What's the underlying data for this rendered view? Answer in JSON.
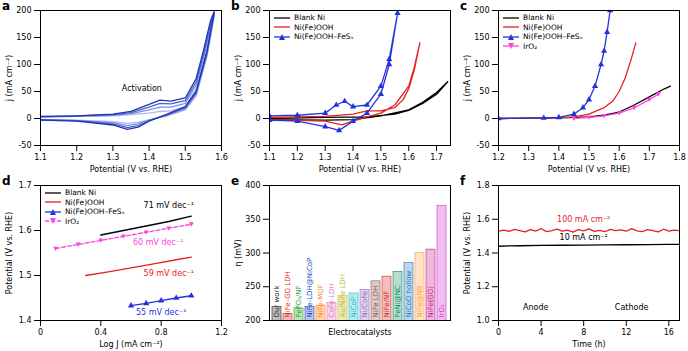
{
  "chart_data": [
    {
      "title": "a",
      "type": "line",
      "x_label": "Potential (V vs. RHE)",
      "y_label": "j (mA cm⁻²)",
      "xlim": [
        1.1,
        1.6
      ],
      "xticks": [
        1.1,
        1.2,
        1.3,
        1.4,
        1.5,
        1.6
      ],
      "ylim": [
        -50,
        200
      ],
      "yticks": [
        -50,
        0,
        50,
        100,
        150,
        200
      ],
      "x": [
        1.1,
        1.2,
        1.3,
        1.35,
        1.4,
        1.43,
        1.46,
        1.5,
        1.53,
        1.55,
        1.57,
        1.58,
        1.56,
        1.53,
        1.5,
        1.45,
        1.4,
        1.37,
        1.34,
        1.3,
        1.2,
        1.1
      ],
      "series": [
        {
          "color": "#aab8ee",
          "line_style": "solid",
          "values": [
            3,
            4,
            5,
            7,
            10,
            13,
            14,
            22,
            55,
            100,
            160,
            190,
            115,
            42,
            16,
            5,
            -2,
            -7,
            -9,
            -6,
            -3,
            -2
          ]
        },
        {
          "color": "#7b8fe0",
          "line_style": "solid",
          "values": [
            3,
            4,
            6,
            9,
            16,
            21,
            21,
            28,
            62,
            110,
            168,
            193,
            118,
            45,
            18,
            6,
            -3,
            -10,
            -13,
            -8,
            -4,
            -2
          ]
        },
        {
          "color": "#4a62d0",
          "line_style": "solid",
          "values": [
            3,
            5,
            7,
            11,
            21,
            28,
            27,
            33,
            68,
            118,
            175,
            196,
            122,
            48,
            20,
            7,
            -4,
            -13,
            -17,
            -10,
            -4,
            -2
          ]
        },
        {
          "color": "#1f35b5",
          "line_style": "solid",
          "values": [
            4,
            5,
            8,
            13,
            26,
            34,
            32,
            38,
            74,
            125,
            182,
            198,
            125,
            50,
            22,
            8,
            -5,
            -16,
            -20,
            -12,
            -5,
            -3
          ]
        }
      ],
      "annotations": [
        {
          "text": "Activation",
          "x": 1.38,
          "y": 55,
          "color": "#000000"
        }
      ]
    },
    {
      "title": "b",
      "type": "line",
      "x_label": "Potential (V vs. RHE)",
      "y_label": "j (mA cm⁻²)",
      "xlim": [
        1.1,
        1.75
      ],
      "xticks": [
        1.1,
        1.2,
        1.3,
        1.4,
        1.5,
        1.6,
        1.7
      ],
      "ylim": [
        -50,
        200
      ],
      "yticks": [
        -50,
        0,
        50,
        100,
        150,
        200
      ],
      "legend": "top-left",
      "series": [
        {
          "name": "Blank Ni",
          "color": "#000000",
          "line_style": "solid",
          "x": [
            1.1,
            1.3,
            1.45,
            1.55,
            1.6,
            1.65,
            1.7,
            1.74,
            1.7,
            1.65,
            1.6,
            1.5,
            1.4,
            1.3,
            1.1
          ],
          "values": [
            0,
            2,
            3,
            8,
            15,
            28,
            45,
            68,
            48,
            30,
            16,
            5,
            -2,
            -3,
            -2
          ]
        },
        {
          "name": "Ni(Fe)OOH",
          "color": "#e8211d",
          "line_style": "solid",
          "x": [
            1.1,
            1.3,
            1.4,
            1.45,
            1.5,
            1.55,
            1.58,
            1.6,
            1.62,
            1.64,
            1.62,
            1.6,
            1.55,
            1.5,
            1.45,
            1.4,
            1.36,
            1.3,
            1.1
          ],
          "values": [
            2,
            4,
            8,
            14,
            14,
            20,
            35,
            55,
            90,
            140,
            95,
            60,
            25,
            10,
            3,
            -5,
            -12,
            -5,
            -2
          ]
        },
        {
          "name": "Ni(Fe)OOH–FeSₓ",
          "color": "#2233dd",
          "line_style": "solid",
          "marker": "triangle",
          "x": [
            1.1,
            1.2,
            1.3,
            1.34,
            1.37,
            1.4,
            1.45,
            1.5,
            1.53,
            1.56,
            1.53,
            1.5,
            1.45,
            1.4,
            1.35,
            1.3,
            1.2,
            1.1
          ],
          "values": [
            5,
            6,
            10,
            25,
            32,
            22,
            25,
            60,
            110,
            195,
            100,
            45,
            10,
            -5,
            -22,
            -15,
            -5,
            -3
          ]
        }
      ]
    },
    {
      "title": "c",
      "type": "line",
      "x_label": "Potential (V vs. RHE)",
      "y_label": "j (mA cm⁻²)",
      "xlim": [
        1.2,
        1.8
      ],
      "xticks": [
        1.2,
        1.3,
        1.4,
        1.5,
        1.6,
        1.7,
        1.8
      ],
      "ylim": [
        -50,
        200
      ],
      "yticks": [
        -50,
        0,
        50,
        100,
        150,
        200
      ],
      "legend": "top-left",
      "series": [
        {
          "name": "Blank Ni",
          "color": "#000000",
          "line_style": "solid",
          "x": [
            1.2,
            1.4,
            1.5,
            1.55,
            1.6,
            1.65,
            1.7,
            1.75,
            1.77
          ],
          "values": [
            0,
            1,
            3,
            6,
            12,
            25,
            40,
            55,
            60
          ]
        },
        {
          "name": "Ni(Fe)OOH",
          "color": "#e8211d",
          "line_style": "solid",
          "x": [
            1.2,
            1.4,
            1.45,
            1.5,
            1.55,
            1.58,
            1.6,
            1.62,
            1.64,
            1.655
          ],
          "values": [
            0,
            1,
            3,
            8,
            20,
            33,
            50,
            75,
            110,
            140
          ]
        },
        {
          "name": "Ni(Fe)OOH–FeSₓ",
          "color": "#2233dd",
          "line_style": "solid",
          "marker": "triangle",
          "x": [
            1.2,
            1.35,
            1.4,
            1.45,
            1.48,
            1.5,
            1.52,
            1.54,
            1.55,
            1.56,
            1.57
          ],
          "values": [
            0,
            1,
            2,
            8,
            20,
            35,
            60,
            100,
            125,
            160,
            200
          ]
        },
        {
          "name": "IrO₂",
          "color": "#ff44dd",
          "line_style": "solid",
          "marker": "triangle-down",
          "x": [
            1.45,
            1.5,
            1.55,
            1.6,
            1.65,
            1.7,
            1.73
          ],
          "values": [
            0,
            2,
            5,
            10,
            20,
            35,
            45
          ]
        }
      ]
    },
    {
      "title": "d",
      "type": "line",
      "x_label": "Log J (mA cm⁻²)",
      "y_label": "Potential (V vs. RHE)",
      "xlim": [
        0,
        1.2
      ],
      "xticks": [
        0,
        0.4,
        0.8,
        1.2
      ],
      "ylim": [
        1.4,
        1.7
      ],
      "yticks": [
        1.4,
        1.5,
        1.6,
        1.7
      ],
      "legend": "top-left",
      "series": [
        {
          "name": "Blank Ni",
          "color": "#000000",
          "line_style": "solid",
          "x": [
            0.4,
            0.55,
            0.7,
            0.85,
            1.0
          ],
          "values": [
            1.59,
            1.6,
            1.61,
            1.62,
            1.632
          ]
        },
        {
          "name": "Ni(Fe)OOH",
          "color": "#e8211d",
          "line_style": "solid",
          "x": [
            0.3,
            0.45,
            0.6,
            0.75,
            0.9,
            1.0
          ],
          "values": [
            1.5,
            1.508,
            1.517,
            1.526,
            1.535,
            1.541
          ]
        },
        {
          "name": "Ni(Fe)OOH–FeSₓ",
          "color": "#2233dd",
          "line_style": "solid",
          "marker": "triangle",
          "x": [
            0.6,
            0.7,
            0.8,
            0.9,
            1.0
          ],
          "values": [
            1.433,
            1.438,
            1.444,
            1.45,
            1.455
          ]
        },
        {
          "name": "IrO₂",
          "color": "#ff44dd",
          "line_style": "dashed",
          "marker": "triangle-down",
          "x": [
            0.1,
            0.25,
            0.4,
            0.55,
            0.7,
            0.85,
            1.0
          ],
          "values": [
            1.56,
            1.569,
            1.578,
            1.587,
            1.596,
            1.605,
            1.614
          ]
        }
      ],
      "annotations": [
        {
          "text": "71 mV dec⁻¹",
          "x": 0.85,
          "y": 1.655,
          "color": "#000000"
        },
        {
          "text": "60 mV dec⁻¹",
          "x": 0.78,
          "y": 1.574,
          "color": "#ff44dd"
        },
        {
          "text": "59 mV dec⁻¹",
          "x": 0.85,
          "y": 1.505,
          "color": "#e8211d"
        },
        {
          "text": "55 mV dec⁻¹",
          "x": 0.8,
          "y": 1.418,
          "color": "#2233dd"
        }
      ]
    },
    {
      "title": "e",
      "type": "bar",
      "x_label": "Electrocatalysts",
      "y_label": "η (mV)",
      "categories": [
        "Our work",
        "NiFe–GO LDH",
        "FePO₄/NF",
        "NiFe-LDH@NiCoP",
        "NiFe-MOF",
        "CoFe-LDH",
        "Au/NiFe LDH",
        "NiCoP",
        "Ni/CoFe",
        "NiFe LDH",
        "NiFe/NF",
        "FeNi@NC",
        "NiCoO hollow",
        "NiFe@NB",
        "NiFe(GO)",
        "IrO₂"
      ],
      "values": [
        220,
        210,
        218,
        220,
        222,
        226,
        236,
        240,
        245,
        258,
        265,
        272,
        285,
        300,
        305,
        370
      ],
      "colors": [
        "#222222",
        "#e41a1c",
        "#2ca02c",
        "#1f3fbf",
        "#ff7f0e",
        "#e377c2",
        "#bcbd22",
        "#17becf",
        "#9467bd",
        "#8c564b",
        "#d62728",
        "#0b8c5a",
        "#1f77b4",
        "#ff9f40",
        "#c71585",
        "#cc33cc"
      ],
      "ylim": [
        200,
        400
      ],
      "yticks": [
        200,
        250,
        300,
        350,
        400
      ],
      "tick_labels": "y"
    },
    {
      "title": "f",
      "type": "line",
      "x_label": "Time (h)",
      "y_label": "Potential (V vs. RHE)",
      "xlim": [
        0,
        17
      ],
      "xticks": [
        0,
        4,
        8,
        12,
        16
      ],
      "ylim": [
        1.0,
        1.8
      ],
      "yticks": [
        {
          "value": 1.0,
          "label": "1.0"
        },
        1.2,
        1.4,
        1.6,
        1.8
      ],
      "series": [
        {
          "color": "#e8211d",
          "line_style": "solid",
          "x": [
            0,
            0.5,
            1,
            1.5,
            2,
            2.5,
            3,
            3.5,
            4,
            4.5,
            5,
            5.5,
            6,
            6.5,
            7,
            7.5,
            8,
            8.5,
            9,
            9.5,
            10,
            10.5,
            11,
            11.5,
            12,
            12.5,
            13,
            13.5,
            14,
            14.5,
            15,
            15.5,
            16,
            16.5,
            17
          ],
          "values": [
            1.53,
            1.535,
            1.528,
            1.54,
            1.532,
            1.525,
            1.538,
            1.53,
            1.545,
            1.527,
            1.533,
            1.541,
            1.529,
            1.536,
            1.524,
            1.539,
            1.531,
            1.543,
            1.528,
            1.534,
            1.526,
            1.54,
            1.532,
            1.537,
            1.529,
            1.544,
            1.531,
            1.527,
            1.538,
            1.533,
            1.525,
            1.541,
            1.53,
            1.536,
            1.532
          ]
        },
        {
          "color": "#000000",
          "line_style": "solid",
          "x": [
            0,
            1,
            2,
            4,
            6,
            8,
            10,
            12,
            14,
            16,
            17
          ],
          "values": [
            1.44,
            1.442,
            1.443,
            1.445,
            1.446,
            1.447,
            1.448,
            1.449,
            1.45,
            1.451,
            1.451
          ]
        }
      ],
      "annotations": [
        {
          "text": "100 mA cm⁻²",
          "x": 8,
          "y": 1.6,
          "color": "#e8211d"
        },
        {
          "text": "10 mA cm⁻²",
          "x": 8,
          "y": 1.49,
          "color": "#000000"
        },
        {
          "text": "Anode",
          "x": 3.5,
          "y": 1.08,
          "color": "#000000"
        },
        {
          "text": "Cathode",
          "x": 12.5,
          "y": 1.08,
          "color": "#000000"
        }
      ]
    }
  ]
}
